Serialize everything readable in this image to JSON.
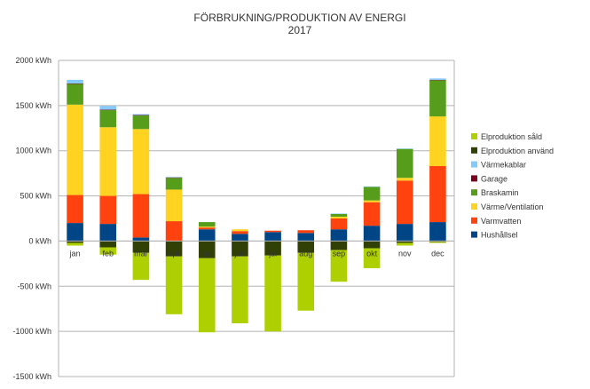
{
  "chart_data": {
    "type": "bar",
    "stacked": true,
    "title": "FÖRBRUKNING/PRODUKTION AV ENERGI",
    "subtitle": "2017",
    "categories": [
      "jan",
      "feb",
      "mar",
      "apr",
      "maj",
      "jun",
      "jul",
      "aug",
      "sep",
      "okt",
      "nov",
      "dec"
    ],
    "y_tick_labels": [
      "2000 kWh",
      "1500 kWh",
      "1000 kWh",
      "500 kWh",
      "0 kWh",
      "-500 kWh",
      "-1000 kWh",
      "-1500 kWh"
    ],
    "y_tick_values": [
      2000,
      1500,
      1000,
      500,
      0,
      -500,
      -1000,
      -1500
    ],
    "ylim": [
      -1500,
      2000
    ],
    "grid": true,
    "legend_position": "right",
    "series": [
      {
        "name": "Hushållsel",
        "color": "#004586",
        "values": [
          200,
          190,
          40,
          0,
          130,
          80,
          100,
          90,
          130,
          170,
          190,
          210
        ]
      },
      {
        "name": "Varmvatten",
        "color": "#ff420e",
        "values": [
          310,
          310,
          480,
          220,
          20,
          30,
          15,
          30,
          120,
          260,
          480,
          620
        ]
      },
      {
        "name": "Värme/Ventilation",
        "color": "#ffd320",
        "values": [
          1000,
          760,
          720,
          350,
          10,
          20,
          0,
          0,
          20,
          20,
          30,
          550
        ]
      },
      {
        "name": "Braskamin",
        "color": "#579d1c",
        "values": [
          230,
          190,
          150,
          130,
          50,
          0,
          0,
          0,
          30,
          150,
          320,
          400
        ]
      },
      {
        "name": "Garage",
        "color": "#7e0021",
        "values": [
          5,
          5,
          5,
          5,
          0,
          0,
          0,
          0,
          0,
          0,
          0,
          5
        ]
      },
      {
        "name": "Värmekablar",
        "color": "#83caff",
        "values": [
          40,
          40,
          10,
          5,
          0,
          0,
          0,
          0,
          5,
          5,
          5,
          15
        ]
      },
      {
        "name": "Elproduktion använd",
        "color": "#314004",
        "values": [
          -20,
          -70,
          -130,
          -170,
          -190,
          -170,
          -160,
          -130,
          -100,
          -80,
          -20,
          -10
        ]
      },
      {
        "name": "Elproduktion såld",
        "color": "#aecf00",
        "values": [
          -30,
          -80,
          -300,
          -640,
          -820,
          -740,
          -840,
          -640,
          -350,
          -220,
          -30,
          -10
        ]
      }
    ]
  }
}
